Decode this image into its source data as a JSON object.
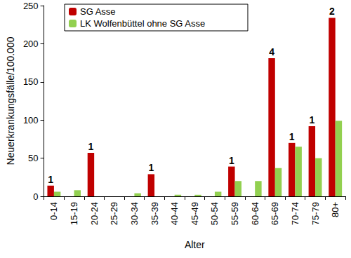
{
  "chart_data": {
    "type": "bar",
    "x_label": "Alter",
    "y_label": "Neuerkrankungsfälle/100.000",
    "categories": [
      "0-14",
      "15-19",
      "20-24",
      "25-29",
      "30-34",
      "35-39",
      "40-44",
      "45-49",
      "50-54",
      "55-59",
      "60-64",
      "65-69",
      "70-74",
      "75-79",
      "80+"
    ],
    "series": [
      {
        "name": "SG Asse",
        "color": "#c00000",
        "values": [
          14,
          0,
          57,
          0,
          0,
          29,
          0,
          0,
          0,
          39,
          0,
          181,
          70,
          92,
          234
        ],
        "counts": [
          1,
          null,
          1,
          null,
          null,
          1,
          null,
          null,
          null,
          1,
          null,
          4,
          1,
          1,
          2
        ]
      },
      {
        "name": "LK Wolfenbüttel ohne SG Asse",
        "color": "#92d050",
        "values": [
          6,
          8,
          0,
          0,
          4,
          0,
          2,
          2,
          6,
          20,
          20,
          37,
          65,
          50,
          99
        ]
      }
    ],
    "ylim": [
      0,
      250
    ],
    "yticks": [
      0,
      50,
      100,
      150,
      200,
      250
    ],
    "grid": false,
    "legend": "upper left"
  }
}
